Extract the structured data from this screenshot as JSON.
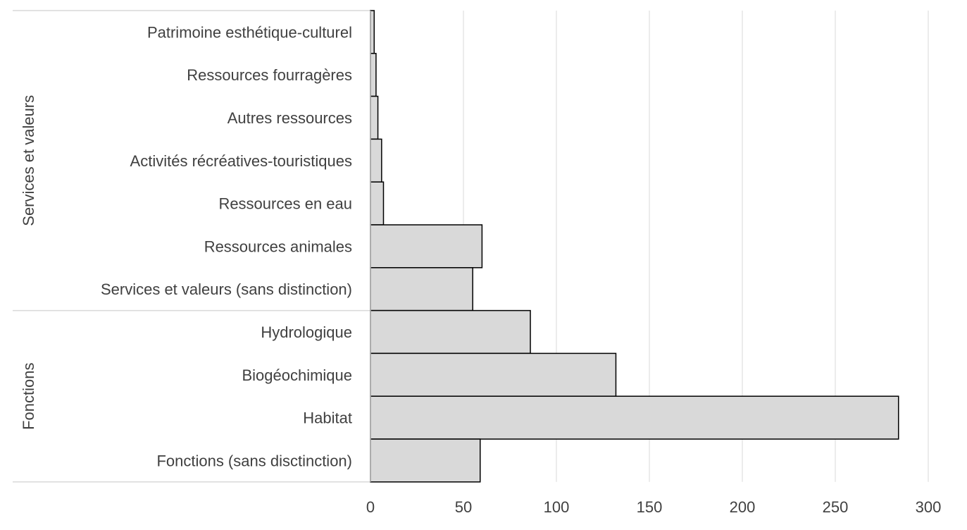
{
  "chart_data": {
    "type": "bar",
    "orientation": "horizontal",
    "title": "",
    "xlabel": "",
    "ylabel": "",
    "xlim": [
      0,
      300
    ],
    "x_ticks": [
      0,
      50,
      100,
      150,
      200,
      250,
      300
    ],
    "grid": "vertical",
    "legend": "none",
    "bar_color": "#d9d9d9",
    "bar_stroke": "#000000",
    "groups": [
      {
        "name": "Services et valeurs",
        "categories": [
          "Patrimoine esthétique-culturel",
          "Ressources fourragères",
          "Autres ressources",
          "Activités récréatives-touristiques",
          "Ressources en eau",
          "Ressources animales",
          "Services et valeurs (sans distinction)"
        ],
        "values": [
          2,
          3,
          4,
          6,
          7,
          60,
          55
        ]
      },
      {
        "name": "Fonctions",
        "categories": [
          "Hydrologique",
          "Biogéochimique",
          "Habitat",
          "Fonctions (sans disctinction)"
        ],
        "values": [
          86,
          132,
          284,
          59
        ]
      }
    ]
  }
}
